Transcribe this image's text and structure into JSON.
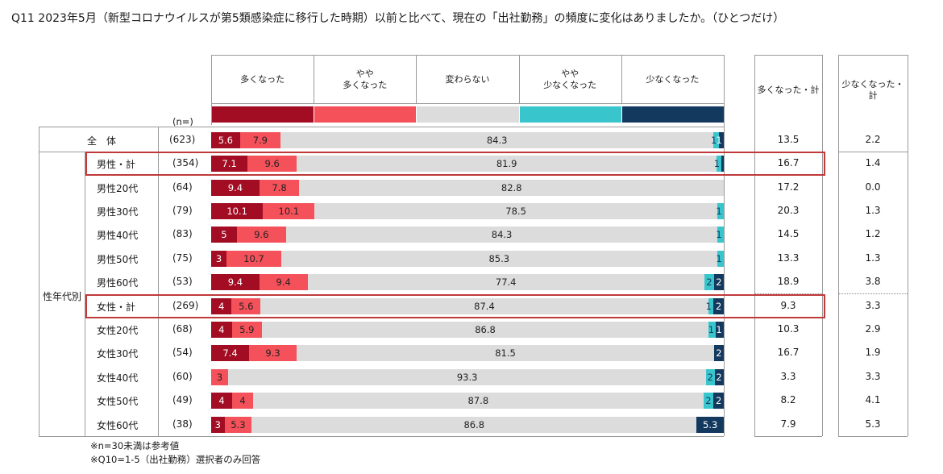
{
  "title": "Q11 2023年5月（新型コロナウイルスが第5類感染症に移行した時期）以前と比べて、現在の「出社勤務」の頻度に変化はありましたか。（ひとつだけ）",
  "chart_data": {
    "type": "bar",
    "subtype": "stacked-horizontal-100",
    "categories_header": [
      "多くなった",
      "やや\n多くなった",
      "変わらない",
      "やや\n少なくなった",
      "少なくなった"
    ],
    "series": [
      {
        "name": "多くなった",
        "color": "#a20d24"
      },
      {
        "name": "やや多くなった",
        "color": "#f4515a"
      },
      {
        "name": "変わらない",
        "color": "#dcdcdc"
      },
      {
        "name": "やや少なくなった",
        "color": "#38c6cc"
      },
      {
        "name": "少なくなった",
        "color": "#13395f"
      }
    ],
    "n_header": "(n=)",
    "group_label": "性年代別",
    "summary_headers": [
      "多くなった・計",
      "少なくなった・計"
    ],
    "rows": [
      {
        "label": "全　体",
        "n": "(623)",
        "values": [
          5.6,
          7.9,
          84.3,
          1,
          1
        ],
        "labels": [
          "5.6",
          "7.9",
          "84.3",
          "1",
          "1"
        ],
        "sum_more": "13.5",
        "sum_less": "2.2"
      },
      {
        "label": "男性・計",
        "n": "(354)",
        "values": [
          7.1,
          9.6,
          81.9,
          1,
          0.4
        ],
        "labels": [
          "7.1",
          "9.6",
          "81.9",
          "1",
          ""
        ],
        "sum_more": "16.7",
        "sum_less": "1.4"
      },
      {
        "label": "男性20代",
        "n": "(64)",
        "values": [
          9.4,
          7.8,
          82.8,
          0,
          0
        ],
        "labels": [
          "9.4",
          "7.8",
          "82.8",
          "",
          ""
        ],
        "sum_more": "17.2",
        "sum_less": "0.0"
      },
      {
        "label": "男性30代",
        "n": "(79)",
        "values": [
          10.1,
          10.1,
          78.5,
          1.3,
          0
        ],
        "labels": [
          "10.1",
          "10.1",
          "78.5",
          "1",
          ""
        ],
        "sum_more": "20.3",
        "sum_less": "1.3"
      },
      {
        "label": "男性40代",
        "n": "(83)",
        "values": [
          5,
          9.6,
          84.3,
          1.2,
          0
        ],
        "labels": [
          "5",
          "9.6",
          "84.3",
          "1",
          ""
        ],
        "sum_more": "14.5",
        "sum_less": "1.2"
      },
      {
        "label": "男性50代",
        "n": "(75)",
        "values": [
          3,
          10.7,
          85.3,
          1.3,
          0
        ],
        "labels": [
          "3",
          "10.7",
          "85.3",
          "1",
          ""
        ],
        "sum_more": "13.3",
        "sum_less": "1.3"
      },
      {
        "label": "男性60代",
        "n": "(53)",
        "values": [
          9.4,
          9.4,
          77.4,
          1.9,
          1.9
        ],
        "labels": [
          "9.4",
          "9.4",
          "77.4",
          "2",
          "2"
        ],
        "sum_more": "18.9",
        "sum_less": "3.8"
      },
      {
        "label": "女性・計",
        "n": "(269)",
        "values": [
          4,
          5.6,
          87.4,
          1,
          2
        ],
        "labels": [
          "4",
          "5.6",
          "87.4",
          "1",
          "2"
        ],
        "sum_more": "9.3",
        "sum_less": "3.3"
      },
      {
        "label": "女性20代",
        "n": "(68)",
        "values": [
          4,
          5.9,
          86.8,
          1.5,
          1.5
        ],
        "labels": [
          "4",
          "5.9",
          "86.8",
          "1",
          "1"
        ],
        "sum_more": "10.3",
        "sum_less": "2.9"
      },
      {
        "label": "女性30代",
        "n": "(54)",
        "values": [
          7.4,
          9.3,
          81.5,
          0,
          1.9
        ],
        "labels": [
          "7.4",
          "9.3",
          "81.5",
          "",
          "2"
        ],
        "sum_more": "16.7",
        "sum_less": "1.9"
      },
      {
        "label": "女性40代",
        "n": "(60)",
        "values": [
          0,
          3.3,
          93.3,
          1.7,
          1.7
        ],
        "labels": [
          "",
          "3",
          "93.3",
          "2",
          "2"
        ],
        "sum_more": "3.3",
        "sum_less": "3.3"
      },
      {
        "label": "女性50代",
        "n": "(49)",
        "values": [
          4.1,
          4.1,
          87.8,
          2,
          2
        ],
        "labels": [
          "4",
          "4",
          "87.8",
          "2",
          "2"
        ],
        "sum_more": "8.2",
        "sum_less": "4.1"
      },
      {
        "label": "女性60代",
        "n": "(38)",
        "values": [
          2.6,
          5.3,
          86.8,
          0,
          5.3
        ],
        "labels": [
          "3",
          "5.3",
          "86.8",
          "",
          "5.3"
        ],
        "sum_more": "7.9",
        "sum_less": "5.3"
      }
    ],
    "highlighted_rows": [
      "男性・計",
      "女性・計"
    ],
    "xlim": [
      0,
      100
    ]
  },
  "footnotes": [
    "※n=30未満は参考値",
    "※Q10=1-5（出社勤務）選択者のみ回答"
  ]
}
